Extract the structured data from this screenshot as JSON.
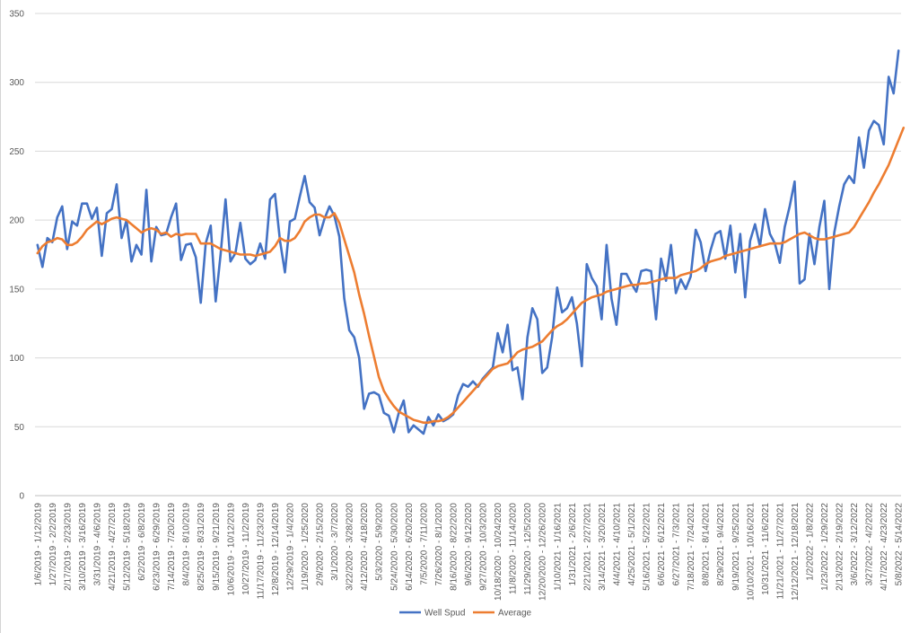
{
  "chart_data": {
    "type": "line",
    "title": "",
    "xlabel": "",
    "ylabel": "",
    "ylim": [
      0,
      350
    ],
    "yticks": [
      0,
      50,
      100,
      150,
      200,
      250,
      300,
      350
    ],
    "grid": "horizontal",
    "legend_position": "bottom",
    "x_tick_labels": [
      "1/6/2019 - 1/12/2019",
      "1/27/2019 - 2/2/2019",
      "2/17/2019 - 2/23/2019",
      "3/10/2019 - 3/16/2019",
      "3/31/2019 - 4/6/2019",
      "4/21/2019 - 4/27/2019",
      "5/12/2019 - 5/18/2019",
      "6/2/2019 - 6/8/2019",
      "6/23/2019 - 6/29/2019",
      "7/14/2019 - 7/20/2019",
      "8/4/2019 - 8/10/2019",
      "8/25/2019 - 8/31/2019",
      "9/15/2019 - 9/21/2019",
      "10/6/2019 - 10/12/2019",
      "10/27/2019 - 11/2/2019",
      "11/17/2019 - 11/23/2019",
      "12/8/2019 - 12/14/2019",
      "12/29/2019 - 1/4/2020",
      "1/19/2020 - 1/25/2020",
      "2/9/2020 - 2/15/2020",
      "3/1/2020 - 3/7/2020",
      "3/22/2020 - 3/28/2020",
      "4/12/2020 - 4/18/2020",
      "5/3/2020 - 5/9/2020",
      "5/24/2020 - 5/30/2020",
      "6/14/2020 - 6/20/2020",
      "7/5/2020 - 7/11/2020",
      "7/26/2020 - 8/1/2020",
      "8/16/2020 - 8/22/2020",
      "9/6/2020 - 9/12/2020",
      "9/27/2020 - 10/3/2020",
      "10/18/2020 - 10/24/2020",
      "11/8/2020 - 11/14/2020",
      "11/29/2020 - 12/5/2020",
      "12/20/2020 - 12/26/2020",
      "1/10/2021 - 1/16/2021",
      "1/31/2021 - 2/6/2021",
      "2/21/2021 - 2/27/2021",
      "3/14/2021 - 3/20/2021",
      "4/4/2021 - 4/10/2021",
      "4/25/2021 - 5/1/2021",
      "5/16/2021 - 5/22/2021",
      "6/6/2021 - 6/12/2021",
      "6/27/2021 - 7/3/2021",
      "7/18/2021 - 7/24/2021",
      "8/8/2021 - 8/14/2021",
      "8/29/2021 - 9/4/2021",
      "9/19/2021 - 9/25/2021",
      "10/10/2021 - 10/16/2021",
      "10/31/2021 - 11/6/2021",
      "11/21/2021 - 11/27/2021",
      "12/12/2021 - 12/18/2021",
      "1/2/2022 - 1/8/2022",
      "1/23/2022 - 1/29/2022",
      "2/13/2022 - 2/19/2022",
      "3/6/2022 - 3/12/2022",
      "3/27/2022 - 4/2/2022",
      "4/17/2022 - 4/23/2022",
      "5/8/2022 - 5/14/2022"
    ],
    "series": [
      {
        "name": "Well Spud",
        "color": "#4472C4",
        "values": [
          182,
          166,
          187,
          184,
          202,
          210,
          179,
          199,
          196,
          212,
          212,
          201,
          209,
          174,
          205,
          208,
          226,
          187,
          200,
          170,
          182,
          175,
          222,
          170,
          195,
          189,
          190,
          202,
          212,
          171,
          182,
          183,
          173,
          140,
          183,
          196,
          141,
          175,
          215,
          170,
          176,
          198,
          172,
          168,
          171,
          183,
          172,
          215,
          219,
          185,
          162,
          199,
          201,
          217,
          232,
          213,
          209,
          189,
          201,
          210,
          203,
          188,
          143,
          120,
          115,
          100,
          63,
          74,
          75,
          73,
          60,
          58,
          46,
          60,
          69,
          46,
          51,
          48,
          45,
          57,
          51,
          59,
          54,
          56,
          59,
          73,
          81,
          79,
          83,
          79,
          85,
          89,
          93,
          118,
          104,
          124,
          91,
          93,
          70,
          115,
          136,
          128,
          89,
          93,
          115,
          151,
          133,
          136,
          144,
          125,
          94,
          168,
          158,
          152,
          128,
          182,
          143,
          124,
          161,
          161,
          154,
          148,
          163,
          164,
          163,
          128,
          172,
          156,
          182,
          147,
          157,
          150,
          159,
          193,
          184,
          163,
          178,
          190,
          192,
          172,
          196,
          162,
          190,
          144,
          185,
          197,
          181,
          208,
          190,
          183,
          169,
          195,
          210,
          228,
          154,
          157,
          190,
          168,
          195,
          214,
          150,
          191,
          210,
          226,
          232,
          227,
          260,
          238,
          265,
          272,
          269,
          255,
          304,
          292,
          323
        ]
      },
      {
        "name": "Average",
        "color": "#ED7D31",
        "values": [
          176,
          181,
          184,
          185,
          187,
          186,
          182,
          182,
          184,
          188,
          193,
          196,
          199,
          197,
          199,
          201,
          202,
          201,
          200,
          197,
          194,
          191,
          193,
          194,
          193,
          190,
          191,
          188,
          190,
          189,
          190,
          190,
          190,
          183,
          183,
          183,
          181,
          179,
          178,
          177,
          176,
          175,
          175,
          175,
          174,
          175,
          176,
          177,
          181,
          187,
          185,
          185,
          187,
          192,
          199,
          202,
          204,
          204,
          202,
          202,
          205,
          198,
          186,
          174,
          162,
          146,
          132,
          116,
          101,
          86,
          76,
          70,
          65,
          61,
          59,
          57,
          55,
          54,
          53,
          53,
          54,
          54,
          55,
          57,
          60,
          64,
          68,
          72,
          76,
          80,
          84,
          88,
          92,
          94,
          95,
          96,
          100,
          104,
          106,
          107,
          108,
          110,
          112,
          116,
          120,
          123,
          125,
          128,
          132,
          136,
          140,
          142,
          144,
          145,
          146,
          148,
          149,
          150,
          151,
          152,
          153,
          153,
          154,
          154,
          155,
          156,
          157,
          158,
          158,
          158,
          160,
          161,
          162,
          163,
          165,
          168,
          170,
          171,
          172,
          174,
          175,
          176,
          177,
          178,
          179,
          180,
          181,
          182,
          183,
          183,
          183,
          184,
          186,
          188,
          190,
          191,
          189,
          187,
          186,
          186,
          187,
          188,
          189,
          190,
          191,
          195,
          201,
          207,
          213,
          220,
          226,
          233,
          240,
          249,
          258,
          267
        ]
      }
    ]
  }
}
